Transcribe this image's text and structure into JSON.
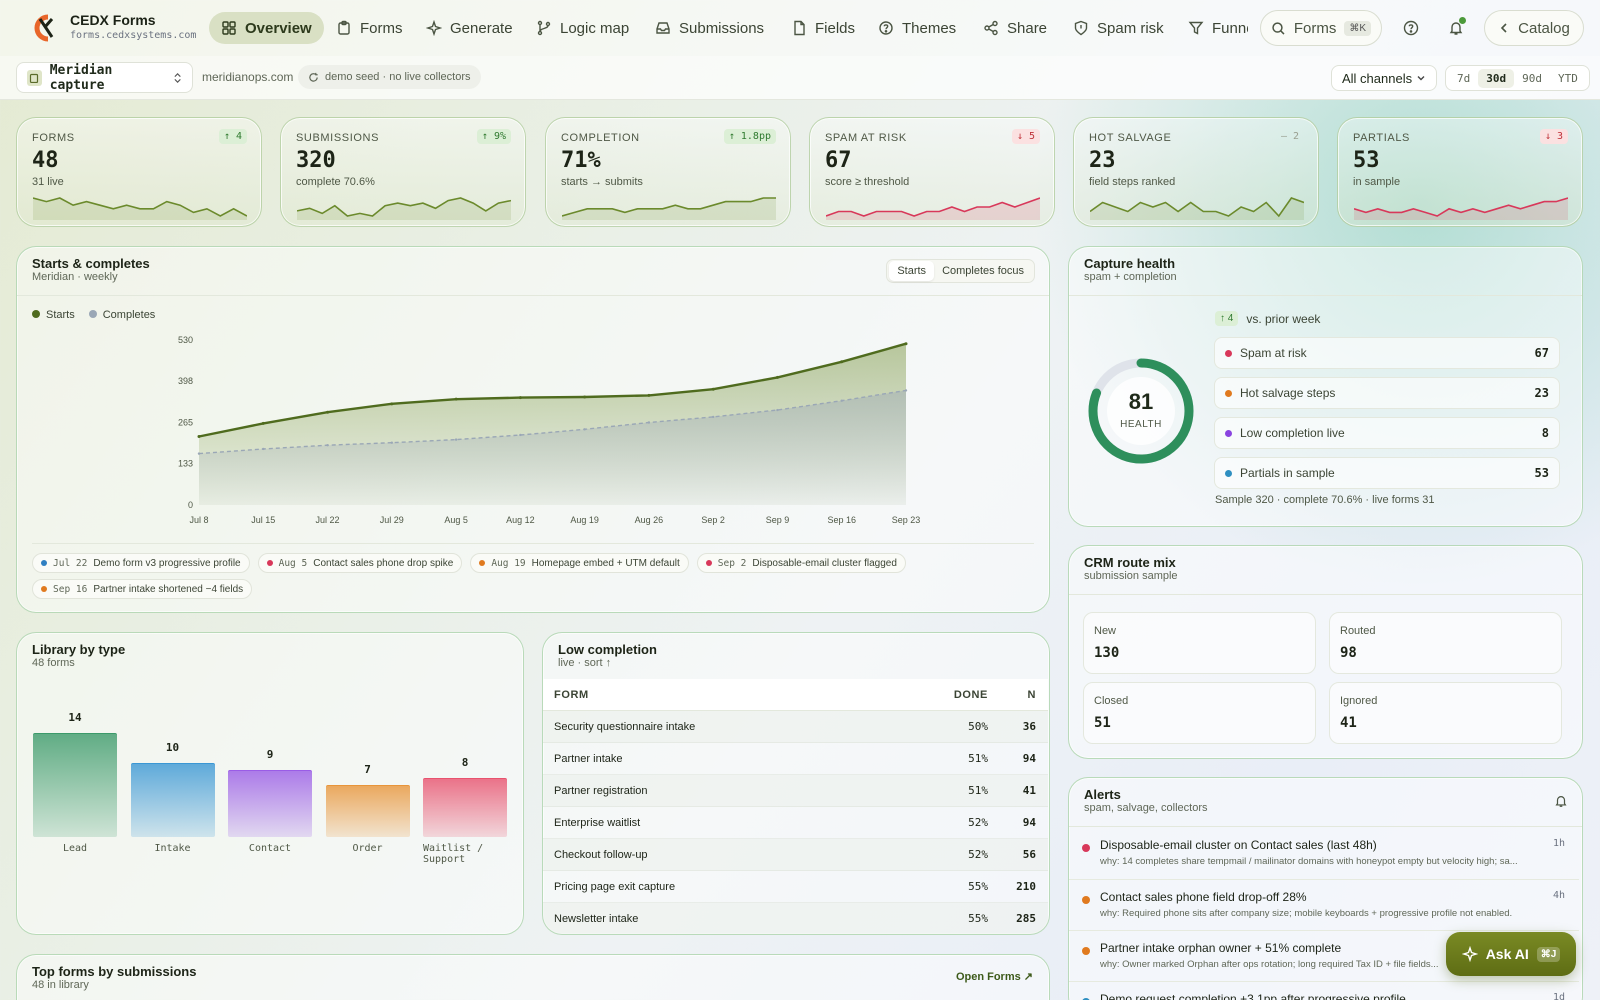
{
  "brand": {
    "name": "CEDX Forms",
    "domain": "forms.cedxsystems.com"
  },
  "nav": {
    "items": [
      "Overview",
      "Forms",
      "Generate",
      "Logic map",
      "Submissions",
      "Fields",
      "Themes",
      "Share",
      "Spam risk",
      "Funnel"
    ],
    "active": "Overview",
    "icons": [
      "grid-icon",
      "clipboard-icon",
      "sparkle-icon",
      "branch-icon",
      "inbox-icon",
      "file-icon",
      "help-circle-icon",
      "share-icon",
      "shield-icon",
      "filter-icon"
    ]
  },
  "search": {
    "label": "Forms",
    "shortcut": "⌘K"
  },
  "catalog": {
    "label": "Catalog"
  },
  "subbar": {
    "workspace": "Meridian capture",
    "domain": "meridianops.com",
    "seed": "demo seed · no live collectors",
    "channel": "All channels",
    "ranges": [
      "7d",
      "30d",
      "90d",
      "YTD"
    ],
    "active_range": "30d"
  },
  "kpis": [
    {
      "label": "FORMS",
      "value": "48",
      "sub": "31 live",
      "delta": "↑ 4",
      "trend": "up",
      "color": "#6b8a2c",
      "spark": [
        6,
        5,
        6,
        4,
        5,
        4,
        3,
        4,
        3,
        3,
        5,
        4,
        2,
        3,
        1,
        3,
        1
      ]
    },
    {
      "label": "SUBMISSIONS",
      "value": "320",
      "sub": "complete 70.6%",
      "delta": "↑ 9%",
      "trend": "up",
      "color": "#6b8a2c",
      "spark": [
        3,
        4,
        2,
        5,
        1,
        2,
        1,
        5,
        6,
        5,
        6,
        4,
        7,
        8,
        6,
        3,
        6,
        7
      ]
    },
    {
      "label": "COMPLETION",
      "value": "71%",
      "sub": "starts → submits",
      "delta": "↑ 1.8pp",
      "trend": "up",
      "color": "#6b8a2c",
      "spark": [
        2,
        3,
        4,
        4,
        4,
        3,
        4,
        4,
        4,
        5,
        4,
        4,
        5,
        6,
        6,
        6,
        7,
        7
      ]
    },
    {
      "label": "SPAM AT RISK",
      "value": "67",
      "sub": "score ≥ threshold",
      "delta": "↓ 5",
      "trend": "down",
      "color": "#d8385a",
      "spark": [
        2,
        3,
        3,
        2,
        3,
        3,
        3,
        2,
        3,
        3,
        4,
        3,
        4,
        4,
        5,
        4,
        5,
        6
      ]
    },
    {
      "label": "HOT SALVAGE",
      "value": "23",
      "sub": "field steps ranked",
      "delta": "– 2",
      "trend": "flat",
      "color": "#6b8a2c",
      "spark": [
        4,
        6,
        5,
        4,
        6,
        5,
        6,
        4,
        6,
        4,
        4,
        3,
        5,
        4,
        6,
        3,
        7,
        6
      ]
    },
    {
      "label": "PARTIALS",
      "value": "53",
      "sub": "in sample",
      "delta": "↓ 3",
      "trend": "down",
      "color": "#d8385a",
      "spark": [
        3,
        2,
        3,
        2,
        2,
        3,
        2,
        1,
        3,
        2,
        3,
        2,
        3,
        4,
        3,
        4,
        5,
        5,
        6
      ]
    }
  ],
  "main_chart": {
    "title": "Starts & completes",
    "subtitle": "Meridian · weekly",
    "tabs": [
      "Starts",
      "Completes focus"
    ],
    "active_tab": "Starts",
    "legend": [
      {
        "name": "Starts",
        "color": "#4f6b1e"
      },
      {
        "name": "Completes",
        "color": "#9aa7b6"
      }
    ],
    "annotations": [
      {
        "date": "Jul 22",
        "text": "Demo form v3 progressive profile",
        "color": "#2f7fc1"
      },
      {
        "date": "Aug 5",
        "text": "Contact sales phone drop spike",
        "color": "#d8385a"
      },
      {
        "date": "Aug 19",
        "text": "Homepage embed + UTM default",
        "color": "#e07a1f"
      },
      {
        "date": "Sep 2",
        "text": "Disposable-email cluster flagged",
        "color": "#d8385a"
      },
      {
        "date": "Sep 16",
        "text": "Partner intake shortened −4 fields",
        "color": "#e07a1f"
      }
    ]
  },
  "chart_data": [
    {
      "type": "area",
      "x": [
        "Jul 8",
        "Jul 15",
        "Jul 22",
        "Jul 29",
        "Aug 5",
        "Aug 12",
        "Aug 19",
        "Aug 26",
        "Sep 2",
        "Sep 9",
        "Sep 16",
        "Sep 23"
      ],
      "yticks": [
        "0",
        "133",
        "265",
        "398",
        "530"
      ],
      "ylim": [
        0,
        530
      ],
      "series": [
        {
          "name": "Starts",
          "values": [
            220,
            262,
            298,
            325,
            340,
            345,
            347,
            352,
            372,
            410,
            460,
            518
          ]
        },
        {
          "name": "Completes",
          "values": [
            165,
            180,
            192,
            200,
            210,
            225,
            243,
            265,
            283,
            305,
            335,
            368
          ]
        }
      ]
    },
    {
      "type": "bar",
      "categories": [
        "Lead",
        "Intake",
        "Contact",
        "Order",
        "Waitlist / Support"
      ],
      "values": [
        14,
        10,
        9,
        7,
        8
      ],
      "colors": [
        "#3c9a6a",
        "#3a97d4",
        "#9a5ce6",
        "#e8953a",
        "#e8526e"
      ]
    }
  ],
  "health": {
    "title": "Capture health",
    "subtitle": "spam + completion",
    "score": "81",
    "score_label": "HEALTH",
    "score_value": 81,
    "delta": "↑ 4",
    "delta_label": "vs. prior week",
    "rows": [
      {
        "label": "Spam at risk",
        "value": "67",
        "color": "#d8385a"
      },
      {
        "label": "Hot salvage steps",
        "value": "23",
        "color": "#e07a1f"
      },
      {
        "label": "Low completion live",
        "value": "8",
        "color": "#8a44e0"
      },
      {
        "label": "Partials in sample",
        "value": "53",
        "color": "#2f8fc1"
      }
    ],
    "footer": "Sample 320 · complete 70.6% · live forms 31"
  },
  "crm": {
    "title": "CRM route mix",
    "subtitle": "submission sample",
    "cells": [
      {
        "label": "New",
        "value": "130"
      },
      {
        "label": "Routed",
        "value": "98"
      },
      {
        "label": "Closed",
        "value": "51"
      },
      {
        "label": "Ignored",
        "value": "41"
      }
    ]
  },
  "alerts": {
    "title": "Alerts",
    "subtitle": "spam, salvage, collectors",
    "items": [
      {
        "title": "Disposable-email cluster on Contact sales (last 48h)",
        "why": "why: 14 completes share tempmail / mailinator domains with honeypot empty but velocity high; sa...",
        "ago": "1h",
        "color": "#d8385a"
      },
      {
        "title": "Contact sales phone field drop-off 28%",
        "why": "why: Required phone sits after company size; mobile keyboards + progressive profile not enabled.",
        "ago": "4h",
        "color": "#e07a1f"
      },
      {
        "title": "Partner intake orphan owner + 51% complete",
        "why": "why: Owner marked Orphan after ops rotation; long required Tax ID + file fields...",
        "ago": "",
        "color": "#e07a1f"
      },
      {
        "title": "Demo request completion +3.1pp after progressive profile",
        "why": "",
        "ago": "1d",
        "color": "#2f8fc1"
      }
    ]
  },
  "library": {
    "title": "Library by type",
    "subtitle": "48 forms"
  },
  "low_completion": {
    "title": "Low completion",
    "subtitle": "live · sort ↑",
    "headers": [
      "FORM",
      "DONE",
      "N"
    ],
    "rows": [
      [
        "Security questionnaire intake",
        "50%",
        "36"
      ],
      [
        "Partner intake",
        "51%",
        "94"
      ],
      [
        "Partner registration",
        "51%",
        "41"
      ],
      [
        "Enterprise waitlist",
        "52%",
        "94"
      ],
      [
        "Checkout follow-up",
        "52%",
        "56"
      ],
      [
        "Pricing page exit capture",
        "55%",
        "210"
      ],
      [
        "Newsletter intake",
        "55%",
        "285"
      ]
    ]
  },
  "top_forms": {
    "title": "Top forms by submissions",
    "subtitle": "48 in library",
    "action": "Open Forms ↗"
  },
  "ask_ai": {
    "label": "Ask AI",
    "shortcut": "⌘J"
  }
}
